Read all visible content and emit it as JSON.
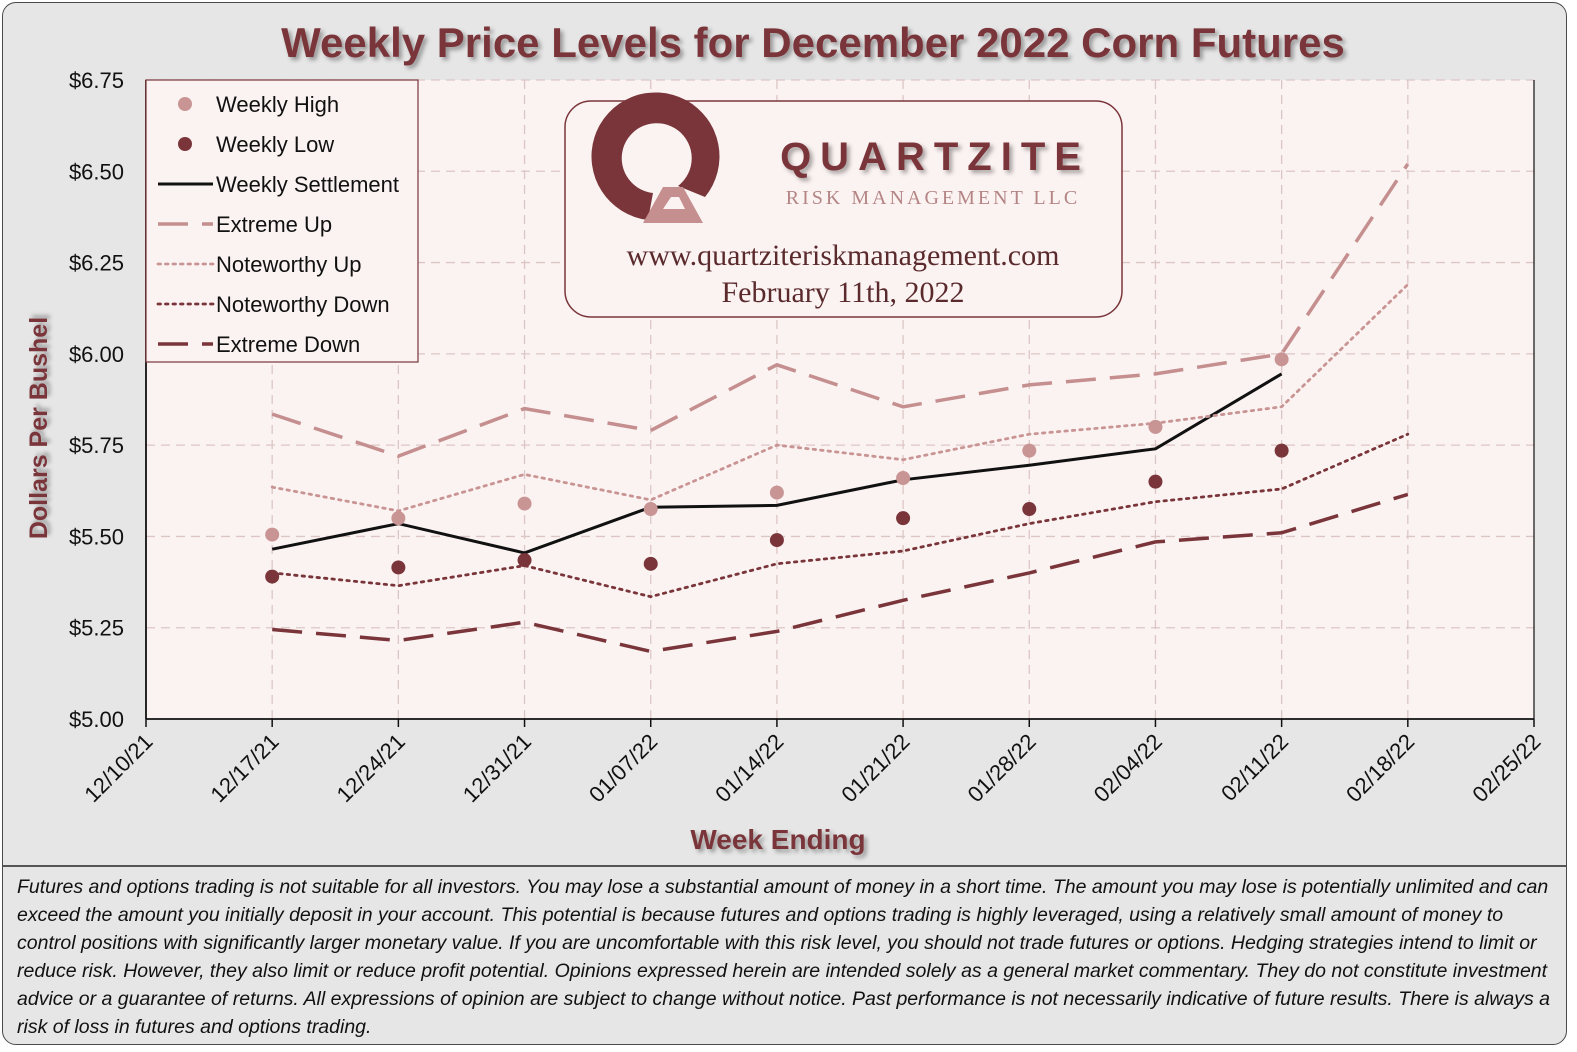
{
  "chart_data": {
    "type": "line",
    "title": "Weekly Price Levels for December 2022 Corn Futures",
    "xlabel": "Week Ending",
    "ylabel": "Dollars Per Bushel",
    "categories": [
      "12/10/21",
      "12/17/21",
      "12/24/21",
      "12/31/21",
      "01/07/22",
      "01/14/22",
      "01/21/22",
      "01/28/22",
      "02/04/22",
      "02/11/22",
      "02/18/22",
      "02/25/22"
    ],
    "yticks": [
      "$5.00",
      "$5.25",
      "$5.50",
      "$5.75",
      "$6.00",
      "$6.25",
      "$6.50",
      "$6.75"
    ],
    "ylim": [
      5.0,
      6.75
    ],
    "grid": true,
    "legend_position": "top-left",
    "series": [
      {
        "name": "Weekly High",
        "kind": "marker",
        "color": "#c99594",
        "values": [
          null,
          5.505,
          5.55,
          5.59,
          5.575,
          5.62,
          5.66,
          5.735,
          5.8,
          5.985,
          null,
          null
        ]
      },
      {
        "name": "Weekly Low",
        "kind": "marker",
        "color": "#7a353a",
        "values": [
          null,
          5.39,
          5.415,
          5.435,
          5.425,
          5.49,
          5.55,
          5.575,
          5.65,
          5.735,
          null,
          null
        ]
      },
      {
        "name": "Weekly Settlement",
        "kind": "solid",
        "color": "#111111",
        "values": [
          null,
          5.465,
          5.535,
          5.455,
          5.58,
          5.585,
          5.655,
          5.695,
          5.74,
          5.945,
          null,
          null
        ]
      },
      {
        "name": "Extreme Up",
        "kind": "longdash",
        "color": "#c48f8e",
        "values": [
          null,
          5.835,
          5.72,
          5.85,
          5.79,
          5.97,
          5.855,
          5.915,
          5.945,
          6.0,
          6.52,
          null
        ]
      },
      {
        "name": "Noteworthy Up",
        "kind": "dotted",
        "color": "#c99594",
        "values": [
          null,
          5.635,
          5.57,
          5.67,
          5.6,
          5.75,
          5.71,
          5.78,
          5.81,
          5.855,
          6.19,
          null
        ]
      },
      {
        "name": "Noteworthy Down",
        "kind": "dotted",
        "color": "#7a353a",
        "values": [
          null,
          5.4,
          5.365,
          5.42,
          5.335,
          5.425,
          5.46,
          5.535,
          5.595,
          5.63,
          5.78,
          null
        ]
      },
      {
        "name": "Extreme Down",
        "kind": "longdash",
        "color": "#7a353a",
        "values": [
          null,
          5.245,
          5.215,
          5.265,
          5.185,
          5.24,
          5.325,
          5.4,
          5.485,
          5.51,
          5.615,
          null
        ]
      }
    ]
  },
  "logo": {
    "name": "QUARTZITE",
    "subtitle": "RISK MANAGEMENT LLC",
    "url": "www.quartziteriskmanagement.com",
    "date": "February 11th, 2022"
  },
  "disclaimer": "Futures and options trading is not suitable for all investors. You may lose a substantial amount of money in a short time. The amount you may lose is potentially unlimited and can exceed the amount you initially deposit in your account. This potential is because futures and options trading is highly leveraged, using a relatively small amount of money to control positions with significantly larger monetary value. If you are uncomfortable with this risk level, you should not trade futures or options. Hedging strategies intend to limit or reduce risk. However, they also limit or reduce profit potential. Opinions expressed herein are intended solely as a general market commentary. They do not constitute investment advice or a guarantee of returns. All expressions of opinion are subject to change without notice. Past performance is not necessarily indicative of future results. There is always a risk of loss in futures and options trading.",
  "colors": {
    "title": "#7a353a",
    "plot_bg": "#fbf3f2",
    "frame_bg": "#e6e6e6",
    "accent": "#7a353a",
    "accent_light": "#c48f8e"
  }
}
